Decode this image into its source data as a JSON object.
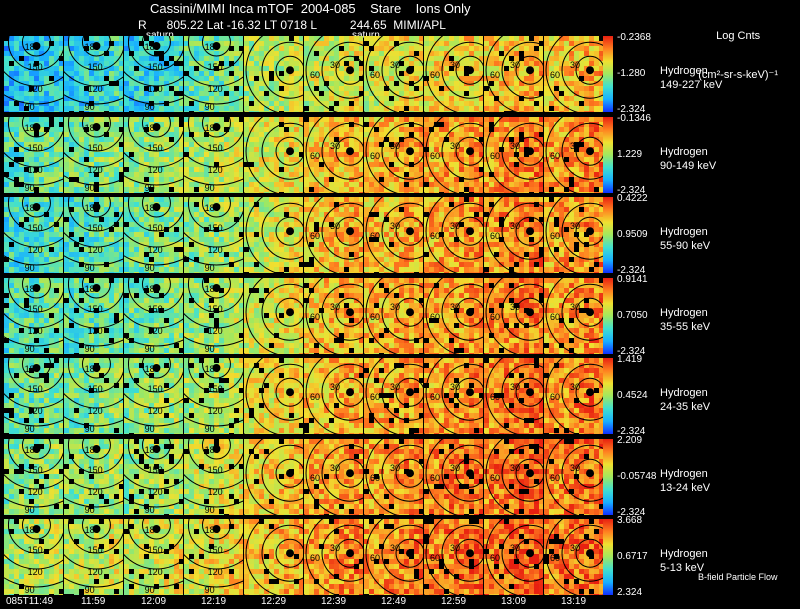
{
  "header": {
    "title": "Cassini/MIMI Inca mTOF  2004-085    Stare    Ions Only",
    "subtitle": "R      805.22 Lat -16.32 LT 0718 L          244.65  MIMI/APL",
    "units_line1": "Log Cnts",
    "units_line2": "(cm²-sr-s-keV)⁻¹"
  },
  "planet_labels": [
    "saturn",
    "saturn"
  ],
  "footer_note": "B-field Particle Flow",
  "chart_data": {
    "type": "heatmap",
    "title": "Cassini/MIMI Inca mTOF  2004-085    Stare    Ions Only",
    "times": [
      "085T11:49",
      "11:59",
      "12:09",
      "12:19",
      "12:29",
      "12:39",
      "12:49",
      "12:59",
      "13:09",
      "13:19"
    ],
    "contour_labels": [
      "30",
      "60",
      "90",
      "120",
      "150",
      "180"
    ],
    "colorscale": [
      "#1030ff",
      "#18b0ff",
      "#40e0d0",
      "#a0e860",
      "#f0e030",
      "#ff8020",
      "#e82010"
    ],
    "rows": [
      {
        "species": "Hydrogen",
        "energy": "149-227 keV",
        "max": "-0.2368",
        "mid": "-1.280",
        "min": "-2.324",
        "levels": [
          0.25,
          0.3,
          0.3,
          0.42,
          0.55,
          0.6,
          0.62,
          0.68,
          0.72,
          0.72
        ]
      },
      {
        "species": "Hydrogen",
        "energy": "90-149 keV",
        "max": "-0.1346",
        "mid": "1.229",
        "min": "-2.324",
        "levels": [
          0.4,
          0.45,
          0.5,
          0.55,
          0.62,
          0.72,
          0.75,
          0.78,
          0.82,
          0.8
        ]
      },
      {
        "species": "Hydrogen",
        "energy": "55-90 keV",
        "max": "0.4222",
        "mid": "0.9509",
        "min": "-2.324",
        "levels": [
          0.35,
          0.38,
          0.45,
          0.5,
          0.6,
          0.72,
          0.74,
          0.78,
          0.82,
          0.8
        ]
      },
      {
        "species": "Hydrogen",
        "energy": "35-55 keV",
        "max": "0.9141",
        "mid": "0.7050",
        "min": "-2.324",
        "levels": [
          0.38,
          0.4,
          0.45,
          0.52,
          0.62,
          0.72,
          0.75,
          0.78,
          0.82,
          0.8
        ]
      },
      {
        "species": "Hydrogen",
        "energy": "24-35 keV",
        "max": "1.419",
        "mid": "0.4524",
        "min": "-2.324",
        "levels": [
          0.42,
          0.45,
          0.5,
          0.55,
          0.65,
          0.74,
          0.76,
          0.8,
          0.84,
          0.82
        ]
      },
      {
        "species": "Hydrogen",
        "energy": "13-24 keV",
        "max": "2.209",
        "mid": "-0.05748",
        "min": "-2.324",
        "levels": [
          0.48,
          0.5,
          0.52,
          0.6,
          0.7,
          0.78,
          0.8,
          0.84,
          0.86,
          0.84
        ]
      },
      {
        "species": "Hydrogen",
        "energy": "5-13 keV",
        "max": "3.668",
        "mid": "0.6717",
        "min": "2.324",
        "levels": [
          0.55,
          0.58,
          0.6,
          0.65,
          0.72,
          0.8,
          0.82,
          0.85,
          0.88,
          0.86
        ]
      }
    ]
  }
}
